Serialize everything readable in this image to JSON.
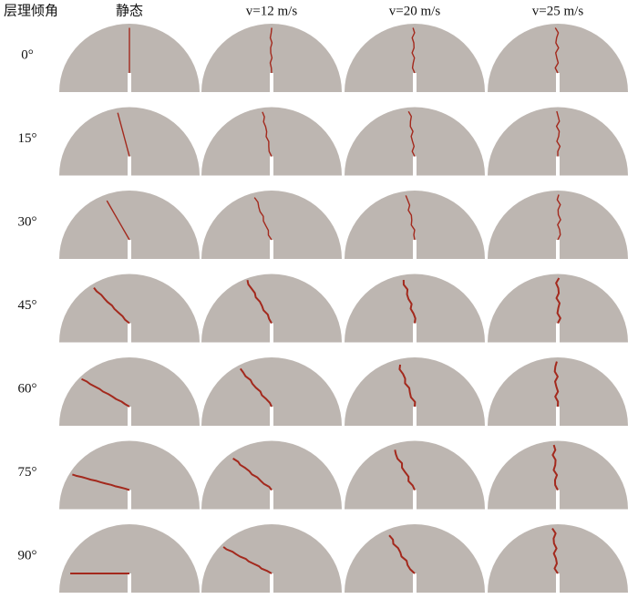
{
  "header": {
    "corner": "层理倾角",
    "columns": [
      "静态",
      "v=12 m/s",
      "v=20 m/s",
      "v=25 m/s"
    ]
  },
  "rows": [
    "0°",
    "15°",
    "30°",
    "45°",
    "60°",
    "75°",
    "90°"
  ]
}
